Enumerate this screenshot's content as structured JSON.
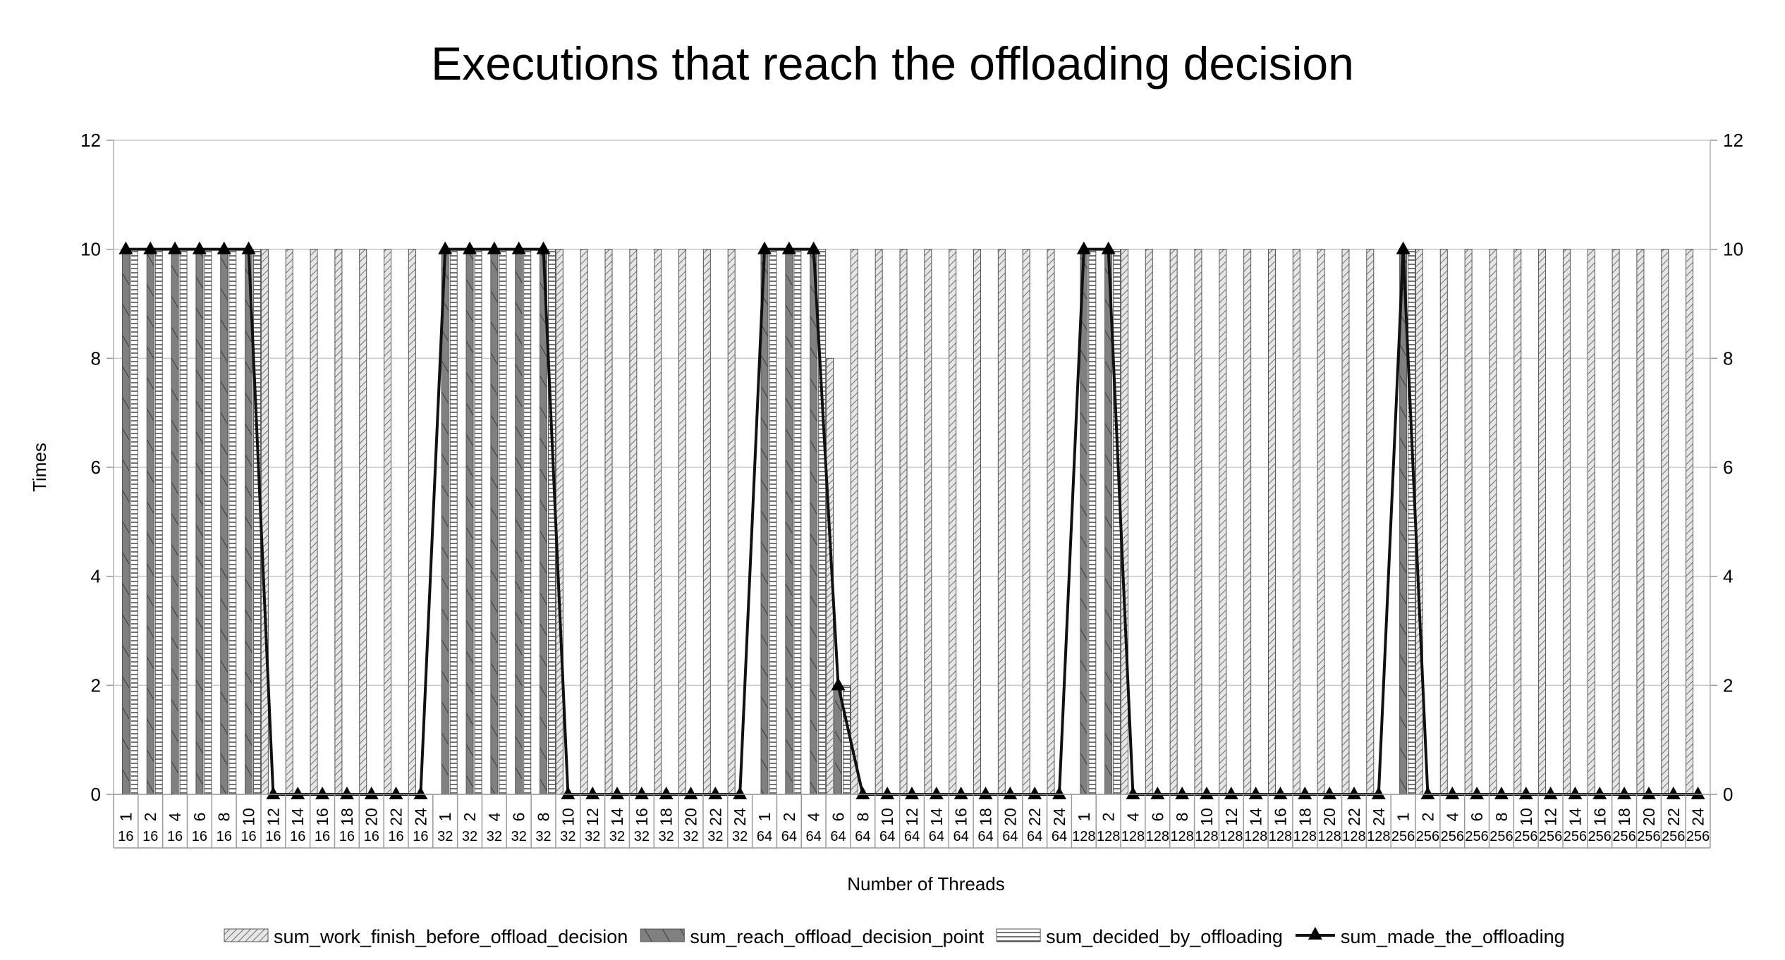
{
  "chart_data": {
    "type": "bar",
    "title": "Executions that reach the offloading decision",
    "xlabel": "Number of Threads",
    "ylabel": "Times",
    "ylim": [
      0,
      12
    ],
    "yticks": [
      0,
      2,
      4,
      6,
      8,
      10,
      12
    ],
    "y2ticks": [
      0,
      2,
      4,
      6,
      8,
      10,
      12
    ],
    "grid": true,
    "legend_position": "bottom",
    "categories": [
      [
        "1",
        "16"
      ],
      [
        "2",
        "16"
      ],
      [
        "4",
        "16"
      ],
      [
        "6",
        "16"
      ],
      [
        "8",
        "16"
      ],
      [
        "10",
        "16"
      ],
      [
        "12",
        "16"
      ],
      [
        "14",
        "16"
      ],
      [
        "16",
        "16"
      ],
      [
        "18",
        "16"
      ],
      [
        "20",
        "16"
      ],
      [
        "22",
        "16"
      ],
      [
        "24",
        "16"
      ],
      [
        "1",
        "32"
      ],
      [
        "2",
        "32"
      ],
      [
        "4",
        "32"
      ],
      [
        "6",
        "32"
      ],
      [
        "8",
        "32"
      ],
      [
        "10",
        "32"
      ],
      [
        "12",
        "32"
      ],
      [
        "14",
        "32"
      ],
      [
        "16",
        "32"
      ],
      [
        "18",
        "32"
      ],
      [
        "20",
        "32"
      ],
      [
        "22",
        "32"
      ],
      [
        "24",
        "32"
      ],
      [
        "1",
        "64"
      ],
      [
        "2",
        "64"
      ],
      [
        "4",
        "64"
      ],
      [
        "6",
        "64"
      ],
      [
        "8",
        "64"
      ],
      [
        "10",
        "64"
      ],
      [
        "12",
        "64"
      ],
      [
        "14",
        "64"
      ],
      [
        "16",
        "64"
      ],
      [
        "18",
        "64"
      ],
      [
        "20",
        "64"
      ],
      [
        "22",
        "64"
      ],
      [
        "24",
        "64"
      ],
      [
        "1",
        "128"
      ],
      [
        "2",
        "128"
      ],
      [
        "4",
        "128"
      ],
      [
        "6",
        "128"
      ],
      [
        "8",
        "128"
      ],
      [
        "10",
        "128"
      ],
      [
        "12",
        "128"
      ],
      [
        "14",
        "128"
      ],
      [
        "16",
        "128"
      ],
      [
        "18",
        "128"
      ],
      [
        "20",
        "128"
      ],
      [
        "22",
        "128"
      ],
      [
        "24",
        "128"
      ],
      [
        "1",
        "256"
      ],
      [
        "2",
        "256"
      ],
      [
        "4",
        "256"
      ],
      [
        "6",
        "256"
      ],
      [
        "8",
        "256"
      ],
      [
        "10",
        "256"
      ],
      [
        "12",
        "256"
      ],
      [
        "14",
        "256"
      ],
      [
        "16",
        "256"
      ],
      [
        "18",
        "256"
      ],
      [
        "20",
        "256"
      ],
      [
        "22",
        "256"
      ],
      [
        "24",
        "256"
      ]
    ],
    "series": [
      {
        "name": "sum_work_finish_before_offload_decision",
        "kind": "bar",
        "pattern": "light-diagonal",
        "values": [
          0,
          0,
          0,
          0,
          0,
          0,
          10,
          10,
          10,
          10,
          10,
          10,
          10,
          0,
          0,
          0,
          0,
          0,
          10,
          10,
          10,
          10,
          10,
          10,
          10,
          10,
          0,
          0,
          0,
          8,
          10,
          10,
          10,
          10,
          10,
          10,
          10,
          10,
          10,
          0,
          0,
          10,
          10,
          10,
          10,
          10,
          10,
          10,
          10,
          10,
          10,
          10,
          0,
          10,
          10,
          10,
          10,
          10,
          10,
          10,
          10,
          10,
          10,
          10,
          10
        ]
      },
      {
        "name": "sum_reach_offload_decision_point",
        "kind": "bar",
        "pattern": "dark-diagonal",
        "values": [
          10,
          10,
          10,
          10,
          10,
          10,
          0,
          0,
          0,
          0,
          0,
          0,
          0,
          10,
          10,
          10,
          10,
          10,
          0,
          0,
          0,
          0,
          0,
          0,
          0,
          0,
          10,
          10,
          10,
          2,
          0,
          0,
          0,
          0,
          0,
          0,
          0,
          0,
          0,
          10,
          10,
          0,
          0,
          0,
          0,
          0,
          0,
          0,
          0,
          0,
          0,
          0,
          10,
          0,
          0,
          0,
          0,
          0,
          0,
          0,
          0,
          0,
          0,
          0,
          0
        ]
      },
      {
        "name": "sum_decided_by_offloading",
        "kind": "bar",
        "pattern": "horizontal-lines",
        "values": [
          10,
          10,
          10,
          10,
          10,
          10,
          0,
          0,
          0,
          0,
          0,
          0,
          0,
          10,
          10,
          10,
          10,
          10,
          0,
          0,
          0,
          0,
          0,
          0,
          0,
          0,
          10,
          10,
          10,
          2,
          0,
          0,
          0,
          0,
          0,
          0,
          0,
          0,
          0,
          10,
          10,
          0,
          0,
          0,
          0,
          0,
          0,
          0,
          0,
          0,
          0,
          0,
          10,
          0,
          0,
          0,
          0,
          0,
          0,
          0,
          0,
          0,
          0,
          0,
          0
        ]
      },
      {
        "name": "sum_made_the_offloading",
        "kind": "line",
        "marker": "triangle",
        "values": [
          10,
          10,
          10,
          10,
          10,
          10,
          0,
          0,
          0,
          0,
          0,
          0,
          0,
          10,
          10,
          10,
          10,
          10,
          0,
          0,
          0,
          0,
          0,
          0,
          0,
          0,
          10,
          10,
          10,
          2,
          0,
          0,
          0,
          0,
          0,
          0,
          0,
          0,
          0,
          10,
          10,
          0,
          0,
          0,
          0,
          0,
          0,
          0,
          0,
          0,
          0,
          0,
          10,
          0,
          0,
          0,
          0,
          0,
          0,
          0,
          0,
          0,
          0,
          0,
          0
        ]
      }
    ]
  }
}
